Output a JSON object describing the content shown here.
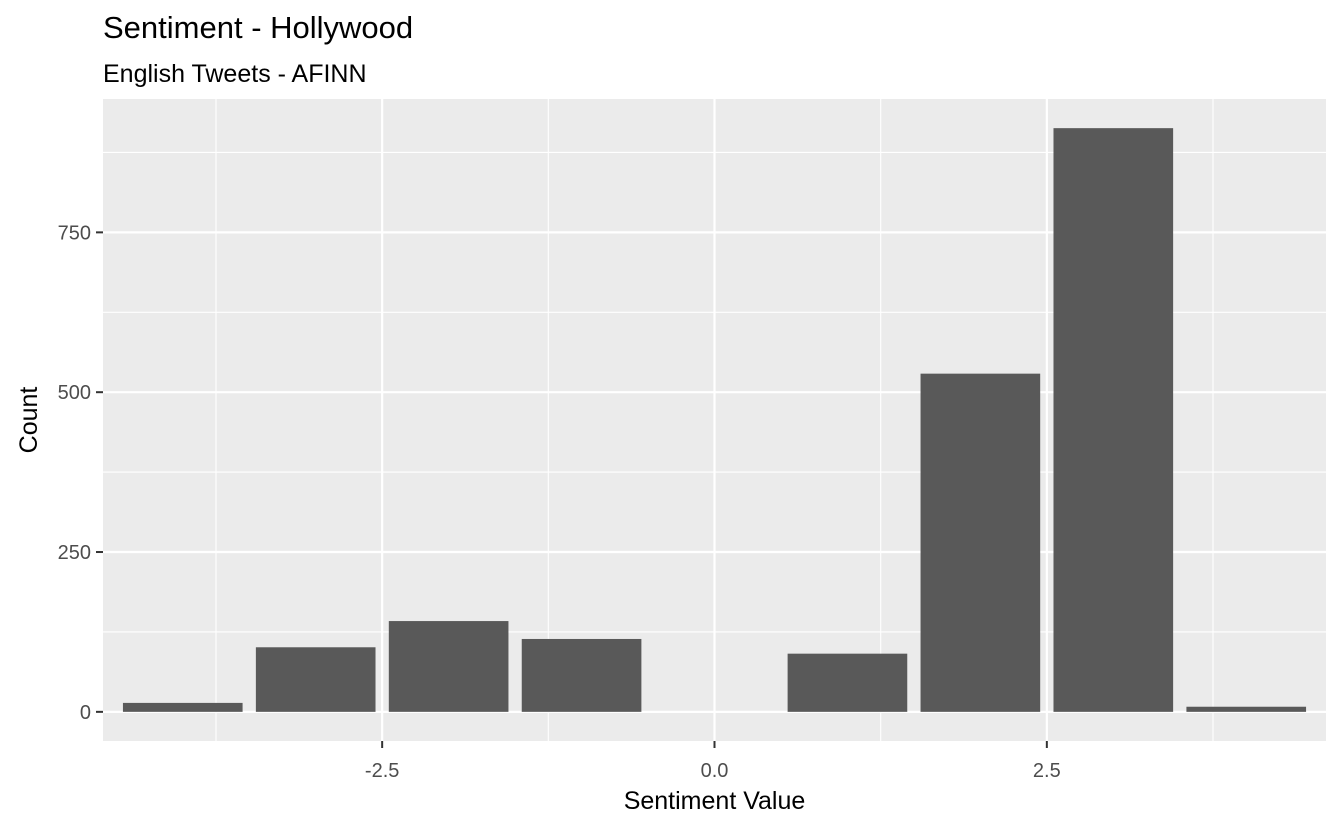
{
  "chart_data": {
    "type": "bar",
    "title": "Sentiment - Hollywood",
    "subtitle": "English Tweets - AFINN",
    "xlabel": "Sentiment Value",
    "ylabel": "Count",
    "x": [
      -4,
      -3,
      -2,
      -1,
      1,
      2,
      3,
      4
    ],
    "values": [
      14,
      101,
      142,
      114,
      91,
      529,
      913,
      8
    ],
    "xlim": [
      -4.6,
      4.6
    ],
    "ylim": [
      -45.6,
      958.6
    ],
    "xticks": [
      -2.5,
      0.0,
      2.5
    ],
    "xtick_labels": [
      "-2.5",
      "0.0",
      "2.5"
    ],
    "yticks": [
      0,
      250,
      500,
      750
    ],
    "ytick_labels": [
      "0",
      "250",
      "500",
      "750"
    ],
    "grid": true,
    "colors": {
      "bar": "#595959",
      "panel": "#ebebeb",
      "grid": "#ffffff"
    }
  }
}
